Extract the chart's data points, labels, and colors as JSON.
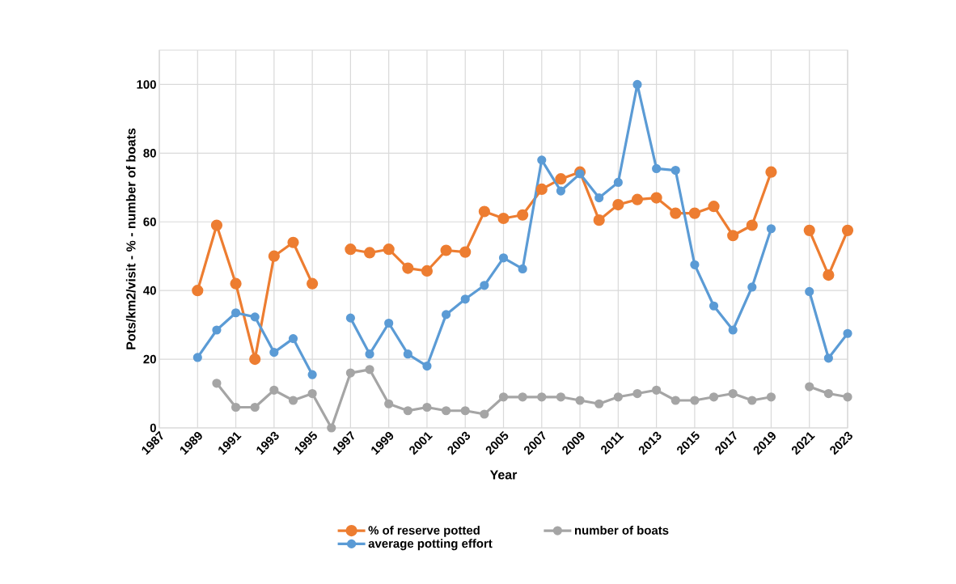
{
  "chart_data": {
    "type": "line",
    "xlabel": "Year",
    "ylabel": "Pots/km2/visit - % - number of boats",
    "x": [
      1989,
      1990,
      1991,
      1992,
      1993,
      1994,
      1995,
      1996,
      1997,
      1998,
      1999,
      2000,
      2001,
      2002,
      2003,
      2004,
      2005,
      2006,
      2007,
      2008,
      2009,
      2010,
      2011,
      2012,
      2013,
      2014,
      2015,
      2016,
      2017,
      2018,
      2019,
      2020,
      2021,
      2022,
      2023
    ],
    "series": [
      {
        "name": "% of reserve potted",
        "color": "#ed7d31",
        "values": [
          40,
          59,
          42,
          20,
          50,
          54,
          42,
          null,
          52,
          51,
          52,
          46.5,
          45.7,
          51.7,
          51.2,
          63,
          61,
          62,
          69.5,
          72.5,
          74.5,
          60.5,
          65,
          66.5,
          67,
          62.5,
          62.5,
          64.5,
          56,
          59,
          74.5,
          null,
          57.5,
          44.5,
          57.5
        ]
      },
      {
        "name": "number of boats",
        "color": "#a5a5a5",
        "values": [
          null,
          13,
          6,
          6,
          11,
          8,
          10,
          0,
          16,
          17,
          7,
          5,
          6,
          5,
          5,
          4,
          9,
          9,
          9,
          9,
          8,
          7,
          9,
          10,
          11,
          8,
          8,
          9,
          10,
          8,
          9,
          null,
          12,
          10,
          9
        ]
      },
      {
        "name": "average potting effort",
        "color": "#5b9bd5",
        "values": [
          20.5,
          28.5,
          33.5,
          32.3,
          22,
          26,
          15.5,
          null,
          32,
          21.5,
          30.5,
          21.5,
          18,
          33,
          37.5,
          41.5,
          49.5,
          46.3,
          78,
          69,
          74,
          67,
          71.5,
          100,
          75.5,
          75,
          47.5,
          35.5,
          28.5,
          41,
          58,
          null,
          39.7,
          20.3,
          27.5
        ]
      }
    ],
    "xlim": [
      1987,
      2023
    ],
    "xticks": [
      1987,
      1989,
      1991,
      1993,
      1995,
      1997,
      1999,
      2001,
      2003,
      2005,
      2007,
      2009,
      2011,
      2013,
      2015,
      2017,
      2019,
      2021,
      2023
    ],
    "ylim": [
      0,
      110
    ],
    "yticks": [
      0,
      20,
      40,
      60,
      80,
      100
    ],
    "grid": true,
    "legend": "bottom",
    "marker": "circle",
    "line_style": "solid"
  }
}
